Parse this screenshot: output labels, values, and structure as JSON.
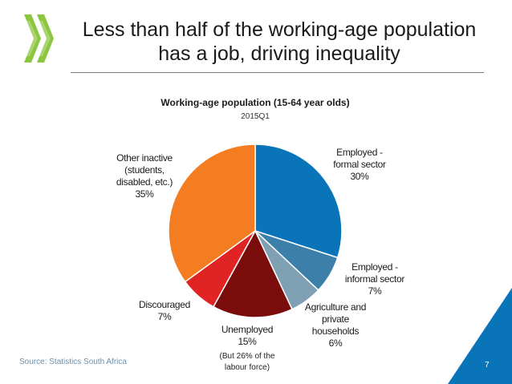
{
  "slide": {
    "title_line1": "Less than half of the working-age population",
    "title_line2": "has a job, driving inequality",
    "source": "Source: Statistics South Africa",
    "page_number": "7",
    "logo_icon": "oecd-chevrons-logo-icon",
    "colors": {
      "logo": "#8cc63f",
      "corner": "#0a74b8"
    }
  },
  "chart_data": {
    "type": "pie",
    "title": "Working-age population (15-64 year olds)",
    "subtitle": "2015Q1",
    "slices": [
      {
        "label_lines": [
          "Employed -",
          "formal sector"
        ],
        "value": 30,
        "pct_label": "30%",
        "color": "#0a74b8"
      },
      {
        "label_lines": [
          "Employed -",
          "informal sector"
        ],
        "value": 7,
        "pct_label": "7%",
        "color": "#3c7fa8"
      },
      {
        "label_lines": [
          "Agriculture and",
          "private",
          "households"
        ],
        "value": 6,
        "pct_label": "6%",
        "color": "#7f9fb3"
      },
      {
        "label_lines": [
          "Unemployed"
        ],
        "value": 15,
        "pct_label": "15%",
        "color": "#7b0c0c"
      },
      {
        "label_lines": [
          "Discouraged"
        ],
        "value": 7,
        "pct_label": "7%",
        "color": "#e02424"
      },
      {
        "label_lines": [
          "Other inactive",
          "(students,",
          "disabled, etc.)"
        ],
        "value": 35,
        "pct_label": "35%",
        "color": "#f47d22"
      }
    ],
    "note": "(But 26% of the labour force)"
  }
}
